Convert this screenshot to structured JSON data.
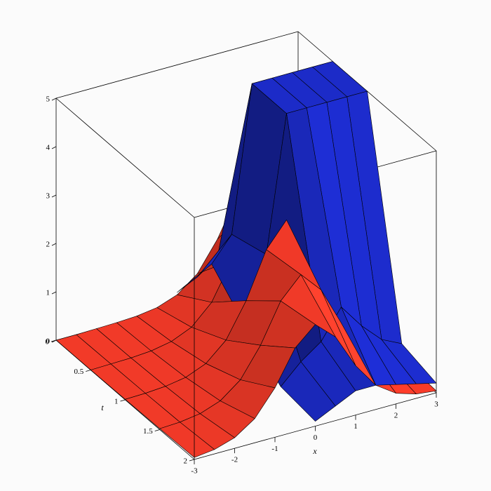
{
  "chart_data": {
    "type": "surface3d",
    "xlabel": "x",
    "ylabel": "t",
    "xlim": [
      -3,
      3
    ],
    "ylim": [
      0,
      2
    ],
    "zlim": [
      0,
      5
    ],
    "xticks": [
      -3,
      -2,
      -1,
      0,
      1,
      2,
      3
    ],
    "yticks": [
      0,
      0.5,
      1,
      1.5,
      2
    ],
    "zticks": [
      0,
      1,
      2,
      3,
      4,
      5
    ],
    "series": [
      {
        "color": "#f23a28",
        "x": [
          -3,
          -2.5,
          -2,
          -1.5,
          -1,
          -0.5,
          0,
          0.5,
          1,
          1.5,
          2,
          2.5,
          3
        ],
        "y": [
          0,
          0.5,
          1,
          1.5,
          2
        ],
        "values": [
          [
            0.0,
            0.0,
            0.01,
            0.02,
            0.04,
            0.1,
            0.25,
            0.57,
            1.17,
            1.97,
            2.4,
            1.97,
            1.17
          ],
          [
            0.0,
            0.01,
            0.02,
            0.05,
            0.13,
            0.31,
            0.71,
            1.46,
            2.47,
            3.0,
            2.47,
            1.46,
            0.71
          ],
          [
            0.01,
            0.02,
            0.05,
            0.12,
            0.29,
            0.66,
            1.36,
            2.3,
            2.8,
            2.3,
            1.36,
            0.66,
            0.29
          ],
          [
            0.02,
            0.04,
            0.1,
            0.25,
            0.57,
            1.17,
            1.97,
            2.4,
            1.97,
            1.17,
            0.57,
            0.25,
            0.1
          ],
          [
            0.04,
            0.09,
            0.22,
            0.5,
            1.02,
            1.73,
            2.1,
            1.73,
            1.02,
            0.5,
            0.22,
            0.09,
            0.04
          ]
        ]
      },
      {
        "color": "#1c2bc8",
        "x": [
          0,
          0.5,
          1,
          1.5,
          2,
          2.5,
          3
        ],
        "y": [
          0,
          0.5,
          1,
          1.5,
          2
        ],
        "values": [
          [
            0.3,
            0.5,
            0.8,
            1.0,
            0.8,
            0.5,
            0.3
          ],
          [
            1.5,
            2.0,
            5,
            5,
            5,
            5,
            5
          ],
          [
            0.8,
            2.2,
            5,
            5,
            5,
            5,
            5
          ],
          [
            0.2,
            0.6,
            0.9,
            1.5,
            1.0,
            0.6,
            0.4
          ],
          [
            0.1,
            0.3,
            0.5,
            0.5,
            0.4,
            0.3,
            0.2
          ]
        ]
      }
    ]
  }
}
